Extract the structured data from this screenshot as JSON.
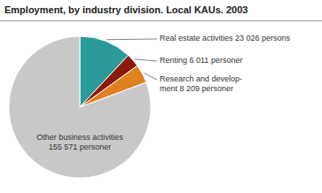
{
  "chart_data": {
    "type": "pie",
    "title": "Employment, by industry division. Local KAUs. 2003",
    "categories": [
      "Real estate activities 23 026 persons",
      "Renting 6 011 personer",
      "Research and develop-\nment 8 209 personer",
      "Other business activities\n155 571 personer"
    ],
    "values": [
      23026,
      6011,
      8209,
      155571
    ],
    "colors": [
      "#2a9a9a",
      "#8b1a0a",
      "#e08020",
      "#c8c8c8"
    ]
  }
}
